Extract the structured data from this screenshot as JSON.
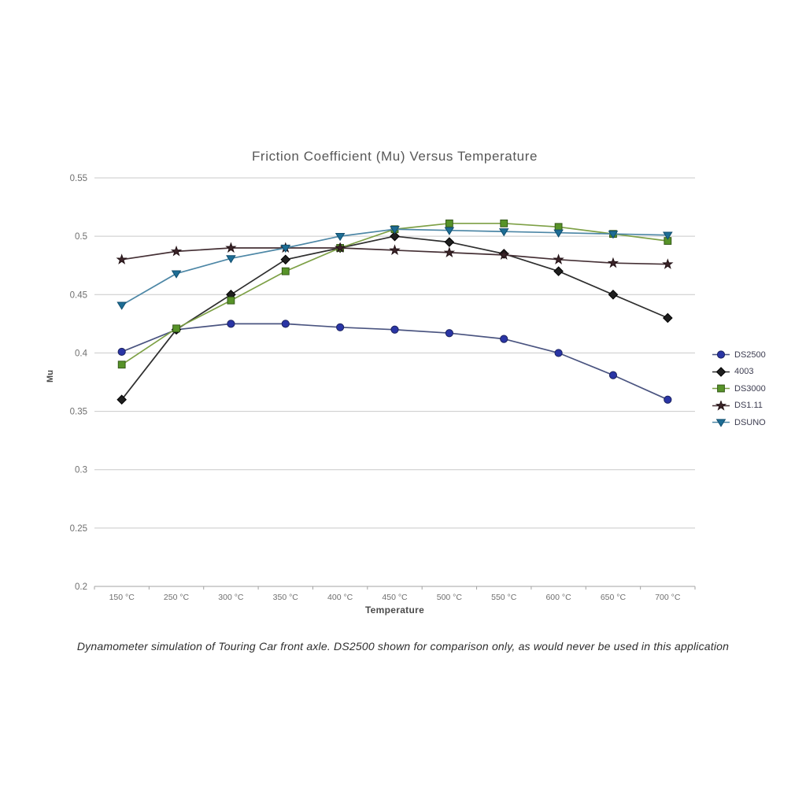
{
  "chart_data": {
    "type": "line",
    "title": "Friction Coefficient (Mu) Versus Temperature",
    "xlabel": "Temperature",
    "ylabel": "Mu",
    "categories": [
      "150 °C",
      "250 °C",
      "300 °C",
      "350 °C",
      "400 °C",
      "450 °C",
      "500 °C",
      "550 °C",
      "600 °C",
      "650 °C",
      "700 °C"
    ],
    "series": [
      {
        "name": "DS2500",
        "marker": "circle",
        "line_color": "#4a5480",
        "marker_color": "#2a35a5",
        "marker_edge": "#1c2360",
        "values": [
          0.401,
          0.42,
          0.425,
          0.425,
          0.422,
          0.42,
          0.417,
          0.412,
          0.4,
          0.381,
          0.36
        ]
      },
      {
        "name": "4003",
        "marker": "diamond",
        "line_color": "#2e2e2e",
        "marker_color": "#1f1f1f",
        "marker_edge": "#000000",
        "values": [
          0.36,
          0.42,
          0.45,
          0.48,
          0.49,
          0.5,
          0.495,
          0.485,
          0.47,
          0.45,
          0.43
        ]
      },
      {
        "name": "DS3000",
        "marker": "square",
        "line_color": "#7da045",
        "marker_color": "#579328",
        "marker_edge": "#35591a",
        "values": [
          0.39,
          0.421,
          0.445,
          0.47,
          0.49,
          0.506,
          0.511,
          0.511,
          0.508,
          0.502,
          0.496
        ]
      },
      {
        "name": "DS1.11",
        "marker": "star",
        "line_color": "#453035",
        "marker_color": "#3a2428",
        "marker_edge": "#241317",
        "values": [
          0.48,
          0.487,
          0.49,
          0.49,
          0.49,
          0.488,
          0.486,
          0.484,
          0.48,
          0.477,
          0.476
        ]
      },
      {
        "name": "DSUNO",
        "marker": "triangle-down",
        "line_color": "#4d87a6",
        "marker_color": "#1d6d95",
        "marker_edge": "#114e6e",
        "values": [
          0.441,
          0.468,
          0.481,
          0.49,
          0.5,
          0.506,
          0.505,
          0.504,
          0.503,
          0.502,
          0.501
        ]
      }
    ],
    "ylim": [
      0.2,
      0.55
    ],
    "ytick_step": 0.05,
    "grid": true,
    "legend_position": "right"
  },
  "caption": "Dynamometer simulation of Touring Car front axle. DS2500 shown for comparison only, as would never be used in this application",
  "colors": {
    "grid": "#c9c9c9",
    "axis": "#a3a3a3",
    "tick_text": "#6f6f6f",
    "title_text": "#575757",
    "caption_text": "#2e2e2e",
    "legend_text": "#3c3c50"
  }
}
